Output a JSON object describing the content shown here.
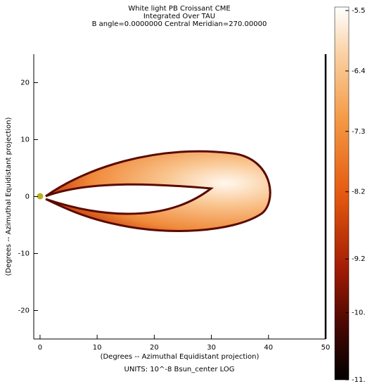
{
  "chart_data": {
    "type": "image",
    "title": [
      "White light PB Croissant CME",
      "Integrated Over TAU",
      "B angle=0.0000000 Central Meridian=270.00000"
    ],
    "xlabel": "(Degrees -- Azimuthal Equidistant projection)",
    "ylabel": "(Degrees -- Azimuthal Equidistant projection)",
    "units": "UNITS: 10^-8 Bsun_center LOG",
    "xlim": [
      -1.1,
      50
    ],
    "xticks": [
      0,
      10,
      20,
      30,
      40,
      50
    ],
    "ylim": [
      -25,
      25
    ],
    "yticks": [
      -20,
      -10,
      0,
      10,
      20
    ],
    "colorbar": {
      "lim": [
        -11,
        -5.5
      ],
      "ticks": [
        -5.5,
        -6.4,
        -7.3,
        -8.2,
        -9.2,
        {
          "value": -10,
          "label": "-10."
        },
        {
          "value": -11,
          "label": "-11."
        }
      ]
    }
  }
}
